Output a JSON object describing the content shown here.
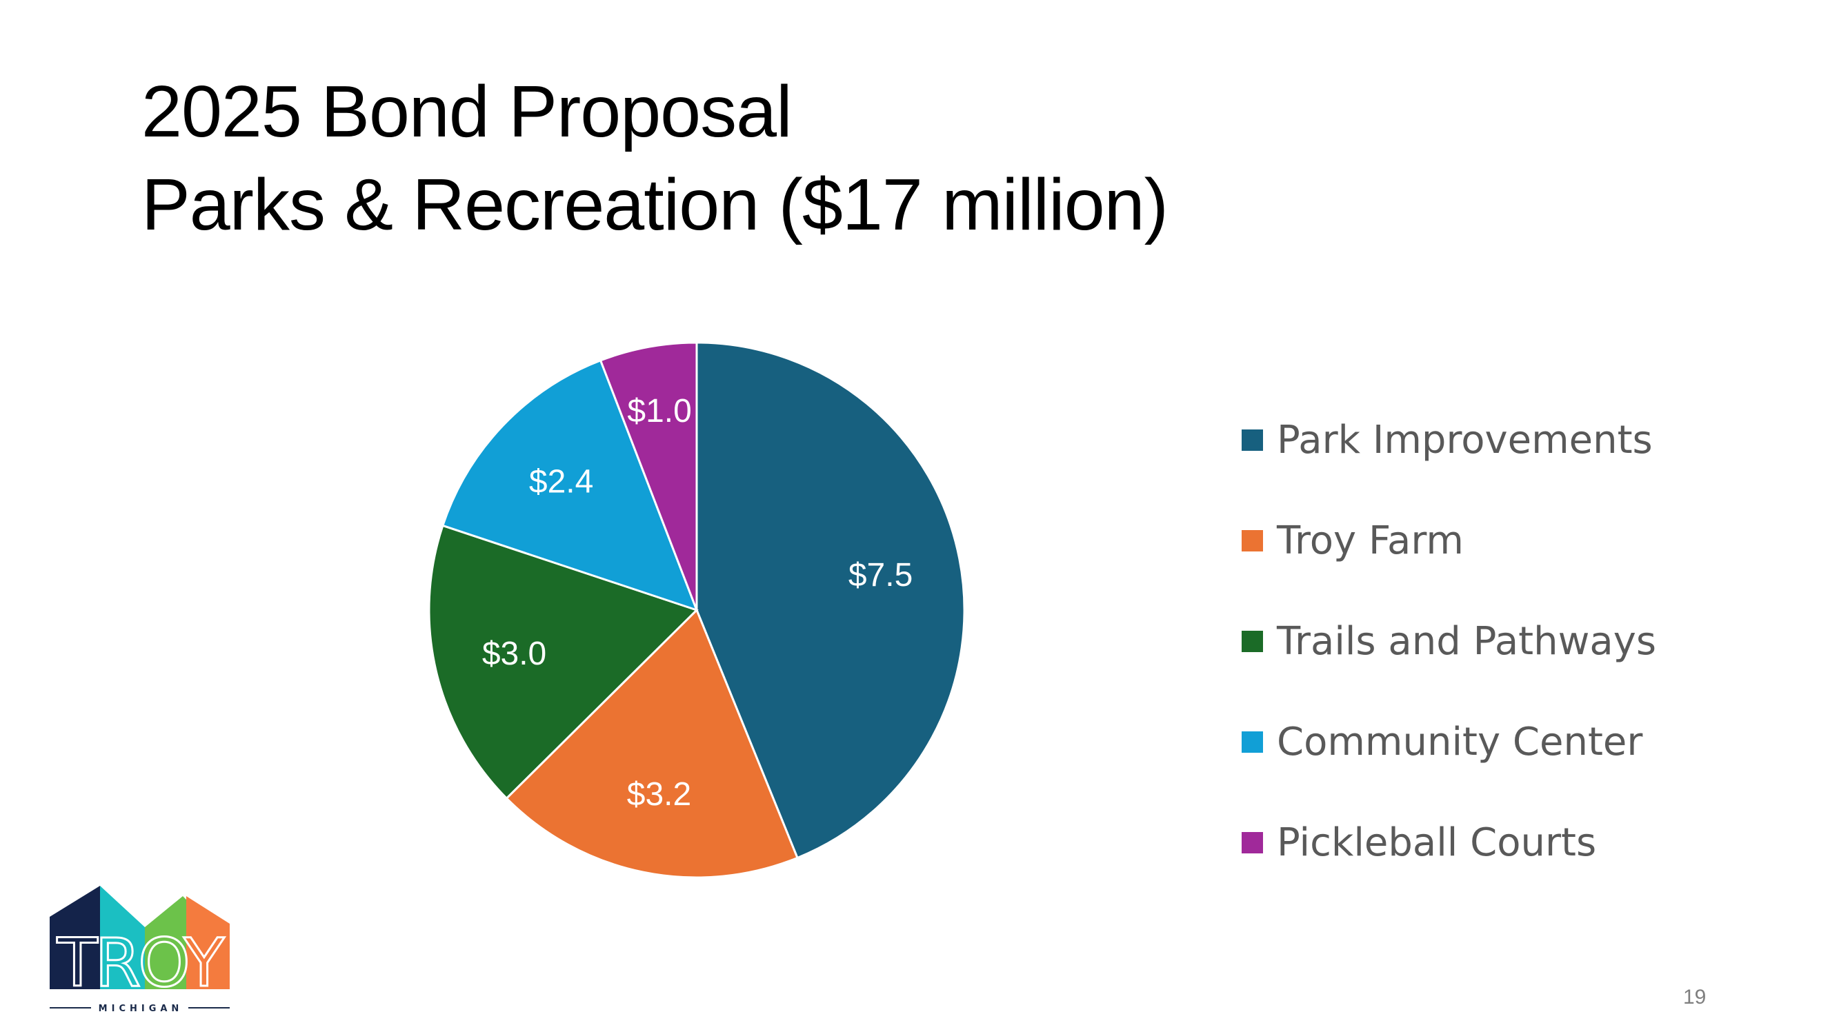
{
  "slide": {
    "title_line1": "2025 Bond Proposal",
    "title_line2": "Parks & Recreation ($17 million)",
    "page_number": "19"
  },
  "logo": {
    "wordmark": "TROY",
    "caption": "MICHIGAN",
    "colors": [
      "#14234a",
      "#1bbfc2",
      "#6cc24a",
      "#f47b3e"
    ]
  },
  "chart_data": {
    "type": "pie",
    "title": "",
    "categories": [
      "Park Improvements",
      "Troy Farm",
      "Trails and Pathways",
      "Community Center",
      "Pickleball Courts"
    ],
    "values": [
      7.5,
      3.2,
      3.0,
      2.4,
      1.0
    ],
    "data_labels": [
      "$7.5",
      "$3.2",
      "$3.0",
      "$2.4",
      "$1.0"
    ],
    "colors": [
      "#17607f",
      "#eb7332",
      "#1b6b27",
      "#119fd6",
      "#a0299a"
    ],
    "start_angle_deg": 0,
    "direction": "clockwise",
    "legend_position": "right"
  }
}
